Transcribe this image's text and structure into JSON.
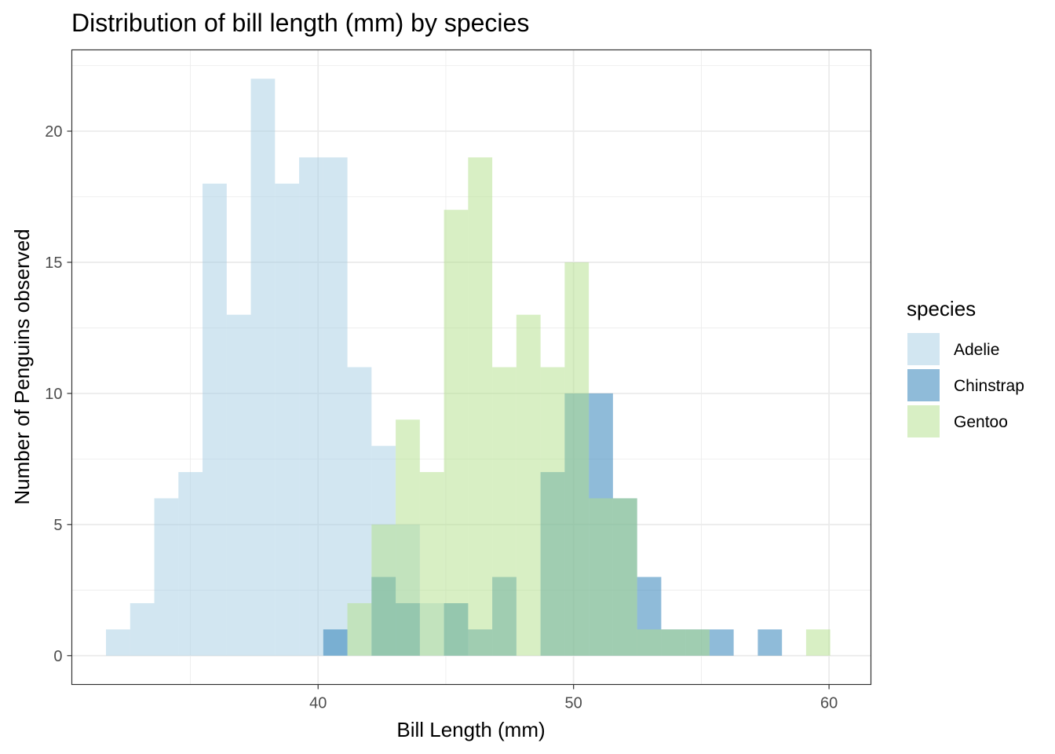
{
  "chart_data": {
    "type": "histogram",
    "title": "Distribution of bill length (mm) by species",
    "xlabel": "Bill Length (mm)",
    "ylabel": "Number of Penguins observed",
    "xlim": [
      30.36,
      61.64
    ],
    "ylim": [
      -1.1,
      23.1
    ],
    "x_ticks": [
      40,
      50,
      60
    ],
    "x_minor_ticks": [
      35,
      45,
      55
    ],
    "y_ticks": [
      0,
      5,
      10,
      15,
      20
    ],
    "y_minor_ticks": [
      2.5,
      7.5,
      12.5,
      17.5,
      22.5
    ],
    "bin_width": 0.945,
    "bin_start": 31.6975,
    "bar_opacity": 0.5,
    "grid": true,
    "legend": {
      "title": "species",
      "position": "right"
    },
    "series": [
      {
        "name": "Adelie",
        "color": "#a6cee3",
        "counts": [
          1,
          2,
          6,
          7,
          18,
          13,
          22,
          18,
          19,
          19,
          11,
          8,
          5,
          2,
          2,
          0,
          0,
          0,
          0,
          0,
          0,
          0,
          0,
          0,
          0,
          0,
          0,
          0,
          0,
          0
        ]
      },
      {
        "name": "Chinstrap",
        "color": "#1f78b4",
        "counts": [
          0,
          0,
          0,
          0,
          0,
          0,
          0,
          0,
          0,
          1,
          0,
          3,
          2,
          0,
          2,
          1,
          3,
          0,
          7,
          10,
          10,
          6,
          3,
          1,
          1,
          1,
          0,
          1,
          0,
          0
        ]
      },
      {
        "name": "Gentoo",
        "color": "#b2df8a",
        "counts": [
          0,
          0,
          0,
          0,
          0,
          0,
          0,
          0,
          0,
          0,
          2,
          5,
          9,
          7,
          17,
          19,
          11,
          13,
          11,
          15,
          6,
          6,
          1,
          1,
          1,
          0,
          0,
          0,
          0,
          1
        ]
      }
    ]
  }
}
